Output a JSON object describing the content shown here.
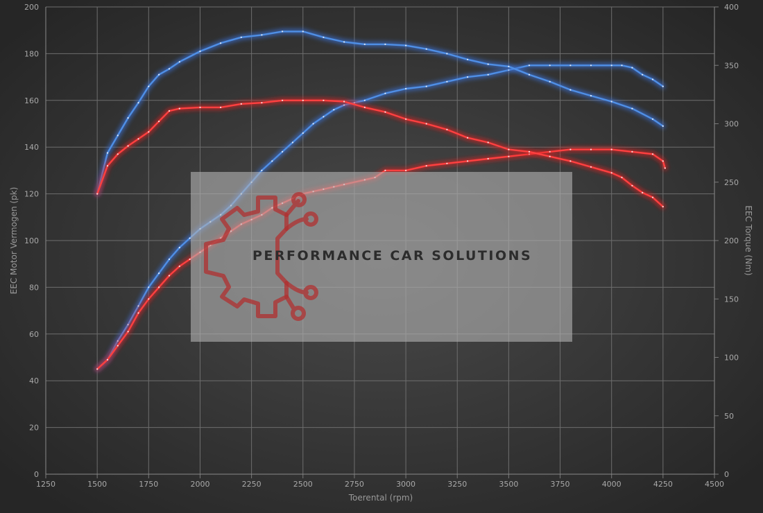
{
  "chart_data": {
    "type": "line",
    "xlabel": "Toerental (rpm)",
    "ylabel_left": "EEC Motor Vermogen (pk)",
    "ylabel_right": "EEC Torque (Nm)",
    "xlim": [
      1250,
      4500
    ],
    "ylim_left": [
      0,
      200
    ],
    "ylim_right": [
      0,
      400
    ],
    "x_ticks": [
      1250,
      1500,
      1750,
      2000,
      2250,
      2500,
      2750,
      3000,
      3250,
      3500,
      3750,
      4000,
      4250,
      4500
    ],
    "y_ticks_left": [
      0,
      20,
      40,
      60,
      80,
      100,
      120,
      140,
      160,
      180,
      200
    ],
    "y_ticks_right": [
      0,
      50,
      100,
      150,
      200,
      250,
      300,
      350,
      400
    ],
    "grid": true,
    "series": [
      {
        "axis": "left",
        "color": "#4f8fe6",
        "glow": "#3a6fd0",
        "points": [
          [
            1500,
            45
          ],
          [
            1550,
            49
          ],
          [
            1600,
            57
          ],
          [
            1650,
            64
          ],
          [
            1700,
            72
          ],
          [
            1750,
            80
          ],
          [
            1800,
            86
          ],
          [
            1850,
            92
          ],
          [
            1900,
            97
          ],
          [
            1950,
            101
          ],
          [
            2000,
            105
          ],
          [
            2050,
            108
          ],
          [
            2100,
            111
          ],
          [
            2150,
            115
          ],
          [
            2200,
            120
          ],
          [
            2250,
            125
          ],
          [
            2300,
            130
          ],
          [
            2350,
            134
          ],
          [
            2400,
            138
          ],
          [
            2450,
            142
          ],
          [
            2500,
            146
          ],
          [
            2550,
            150
          ],
          [
            2600,
            153
          ],
          [
            2650,
            156
          ],
          [
            2700,
            158
          ],
          [
            2750,
            159
          ],
          [
            2800,
            160
          ],
          [
            2900,
            163
          ],
          [
            3000,
            165
          ],
          [
            3100,
            166
          ],
          [
            3200,
            168
          ],
          [
            3300,
            170
          ],
          [
            3400,
            171
          ],
          [
            3500,
            173
          ],
          [
            3600,
            175
          ],
          [
            3700,
            175
          ],
          [
            3800,
            175
          ],
          [
            3900,
            175
          ],
          [
            4000,
            175
          ],
          [
            4050,
            175
          ],
          [
            4100,
            174
          ],
          [
            4150,
            171
          ],
          [
            4200,
            169
          ],
          [
            4250,
            166
          ]
        ]
      },
      {
        "axis": "right",
        "color": "#4f8fe6",
        "glow": "#3a6fd0",
        "points": [
          [
            1500,
            240
          ],
          [
            1550,
            275
          ],
          [
            1600,
            290
          ],
          [
            1650,
            305
          ],
          [
            1700,
            318
          ],
          [
            1750,
            332
          ],
          [
            1800,
            342
          ],
          [
            1850,
            347
          ],
          [
            1900,
            353
          ],
          [
            2000,
            362
          ],
          [
            2100,
            369
          ],
          [
            2200,
            374
          ],
          [
            2300,
            376
          ],
          [
            2400,
            379
          ],
          [
            2500,
            379
          ],
          [
            2600,
            374
          ],
          [
            2700,
            370
          ],
          [
            2800,
            368
          ],
          [
            2900,
            368
          ],
          [
            3000,
            367
          ],
          [
            3100,
            364
          ],
          [
            3200,
            360
          ],
          [
            3300,
            355
          ],
          [
            3400,
            351
          ],
          [
            3500,
            349
          ],
          [
            3600,
            342
          ],
          [
            3700,
            336
          ],
          [
            3800,
            329
          ],
          [
            3900,
            324
          ],
          [
            4000,
            319
          ],
          [
            4100,
            313
          ],
          [
            4200,
            304
          ],
          [
            4250,
            298
          ]
        ]
      },
      {
        "axis": "left",
        "color": "#ff4040",
        "glow": "#d42020",
        "points": [
          [
            1500,
            45
          ],
          [
            1550,
            49
          ],
          [
            1600,
            55
          ],
          [
            1650,
            61
          ],
          [
            1700,
            69
          ],
          [
            1750,
            75
          ],
          [
            1800,
            80
          ],
          [
            1850,
            85
          ],
          [
            1900,
            89
          ],
          [
            1950,
            92
          ],
          [
            2000,
            95
          ],
          [
            2050,
            98
          ],
          [
            2100,
            101
          ],
          [
            2150,
            104
          ],
          [
            2200,
            107
          ],
          [
            2250,
            109
          ],
          [
            2300,
            111
          ],
          [
            2350,
            114
          ],
          [
            2400,
            116
          ],
          [
            2450,
            118
          ],
          [
            2500,
            120
          ],
          [
            2550,
            121
          ],
          [
            2600,
            122
          ],
          [
            2650,
            123
          ],
          [
            2700,
            124
          ],
          [
            2800,
            126
          ],
          [
            2850,
            127
          ],
          [
            2900,
            130
          ],
          [
            3000,
            130
          ],
          [
            3100,
            132
          ],
          [
            3200,
            133
          ],
          [
            3300,
            134
          ],
          [
            3400,
            135
          ],
          [
            3500,
            136
          ],
          [
            3600,
            137
          ],
          [
            3700,
            138
          ],
          [
            3800,
            139
          ],
          [
            3900,
            139
          ],
          [
            4000,
            139
          ],
          [
            4100,
            138
          ],
          [
            4200,
            137
          ],
          [
            4250,
            134
          ],
          [
            4260,
            131
          ]
        ]
      },
      {
        "axis": "right",
        "color": "#ff4040",
        "glow": "#d42020",
        "points": [
          [
            1500,
            240
          ],
          [
            1550,
            264
          ],
          [
            1600,
            274
          ],
          [
            1650,
            281
          ],
          [
            1700,
            287
          ],
          [
            1750,
            293
          ],
          [
            1800,
            302
          ],
          [
            1850,
            311
          ],
          [
            1900,
            313
          ],
          [
            2000,
            314
          ],
          [
            2100,
            314
          ],
          [
            2200,
            317
          ],
          [
            2300,
            318
          ],
          [
            2400,
            320
          ],
          [
            2500,
            320
          ],
          [
            2600,
            320
          ],
          [
            2700,
            319
          ],
          [
            2800,
            314
          ],
          [
            2900,
            310
          ],
          [
            3000,
            304
          ],
          [
            3100,
            300
          ],
          [
            3200,
            295
          ],
          [
            3300,
            288
          ],
          [
            3400,
            284
          ],
          [
            3500,
            278
          ],
          [
            3600,
            276
          ],
          [
            3700,
            272
          ],
          [
            3800,
            268
          ],
          [
            3900,
            263
          ],
          [
            4000,
            258
          ],
          [
            4050,
            254
          ],
          [
            4100,
            247
          ],
          [
            4150,
            241
          ],
          [
            4200,
            237
          ],
          [
            4250,
            229
          ]
        ]
      }
    ]
  },
  "watermark": {
    "text": "PERFORMANCE CAR SOLUTIONS",
    "icon": "gear-circuit-logo-icon"
  }
}
